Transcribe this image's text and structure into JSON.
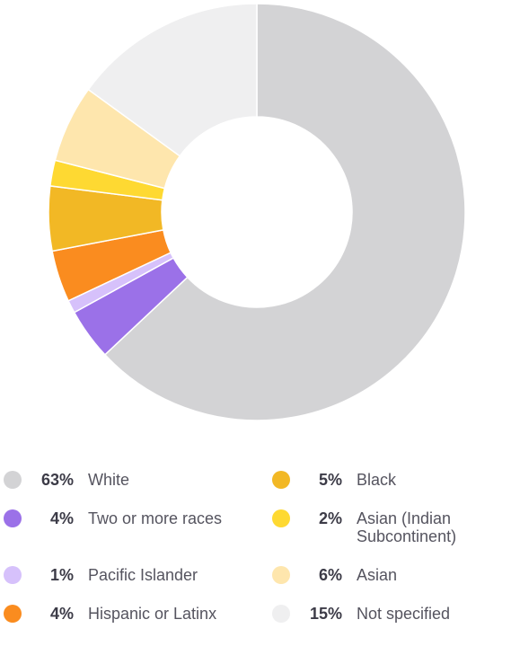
{
  "chart_data": {
    "type": "pie",
    "style": "donut",
    "title": "",
    "categories": [
      "White",
      "Two or more races",
      "Pacific Islander",
      "Hispanic or Latinx",
      "Black",
      "Asian (Indian Subcontinent)",
      "Asian",
      "Not specified"
    ],
    "values": [
      63,
      4,
      1,
      4,
      5,
      2,
      6,
      15
    ],
    "value_labels": [
      "63%",
      "4%",
      "1%",
      "4%",
      "5%",
      "2%",
      "6%",
      "15%"
    ],
    "colors": [
      "#d3d3d5",
      "#9b71e8",
      "#d6c1fb",
      "#fa8c1f",
      "#f2b825",
      "#fed932",
      "#fee6ad",
      "#efeff0"
    ],
    "legend_placement": "bottom"
  }
}
